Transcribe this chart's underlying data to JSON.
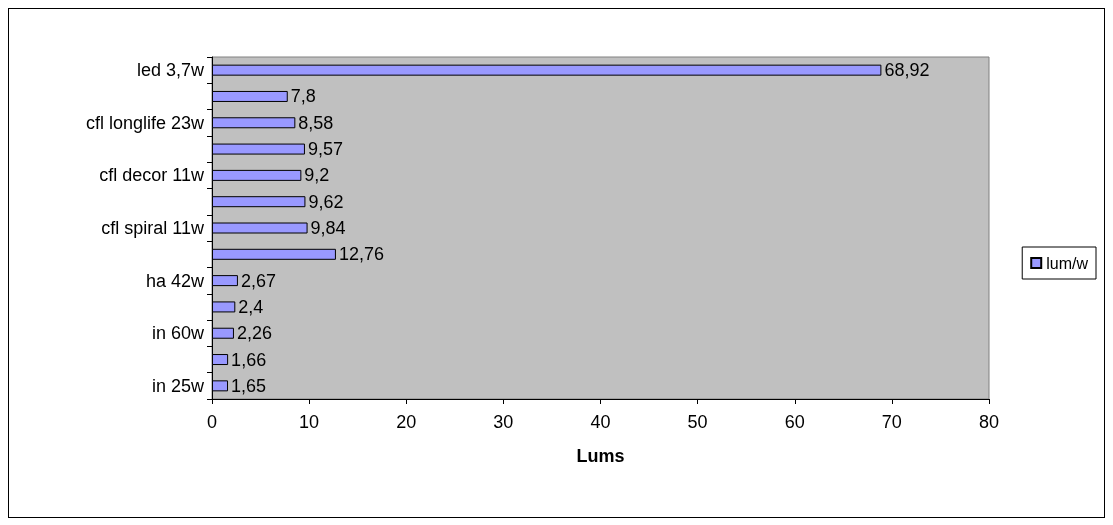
{
  "chart_data": {
    "type": "bar",
    "orientation": "horizontal",
    "xlabel": "Lums",
    "categories": [
      "led 3,7w",
      null,
      "cfl longlife 23w",
      null,
      "cfl decor 11w",
      null,
      "cfl spiral 11w",
      null,
      "ha 42w",
      null,
      "in 60w",
      null,
      "in 25w"
    ],
    "series": [
      {
        "name": "lum/w",
        "color": "#9999ff",
        "values": [
          68.92,
          7.8,
          8.58,
          9.57,
          9.2,
          9.62,
          9.84,
          12.76,
          2.67,
          2.4,
          2.26,
          1.66,
          1.65
        ],
        "value_labels": [
          "68,92",
          "7,8",
          "8,58",
          "9,57",
          "9,2",
          "9,62",
          "9,84",
          "12,76",
          "2,67",
          "2,4",
          "2,26",
          "1,66",
          "1,65"
        ]
      }
    ],
    "xlim": [
      0,
      80
    ],
    "xticks": [
      0,
      10,
      20,
      30,
      40,
      50,
      60,
      70,
      80
    ],
    "grid": false,
    "legend": "right"
  }
}
